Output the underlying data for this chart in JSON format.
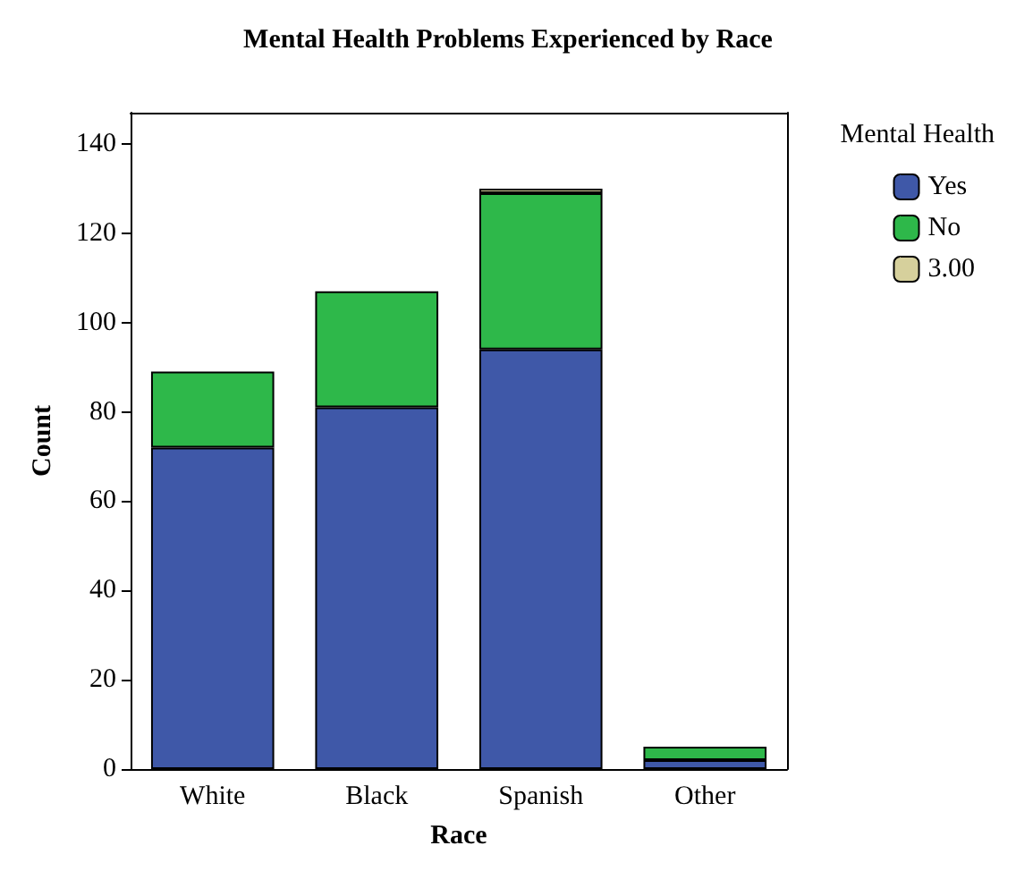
{
  "chart_data": {
    "type": "bar",
    "title": "Mental Health Problems Experienced by Race",
    "xlabel": "Race",
    "ylabel": "Count",
    "legend_title": "Mental Health",
    "categories": [
      "White",
      "Black",
      "Spanish",
      "Other"
    ],
    "series": [
      {
        "name": "Yes",
        "color": "#3f58a8",
        "values": [
          72,
          81,
          94,
          2
        ]
      },
      {
        "name": "No",
        "color": "#2eb84a",
        "values": [
          17,
          26,
          35,
          3
        ]
      },
      {
        "name": "3.00",
        "color": "#d6d09c",
        "values": [
          0,
          0,
          1,
          0
        ]
      }
    ],
    "stacked": true,
    "ylim": [
      0,
      147
    ],
    "yticks": [
      0,
      20,
      40,
      60,
      80,
      100,
      120,
      140
    ],
    "grid": false,
    "legend": "top right"
  }
}
